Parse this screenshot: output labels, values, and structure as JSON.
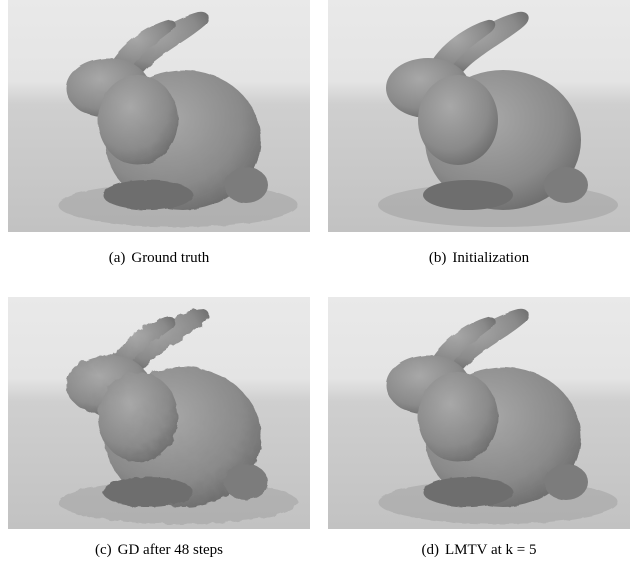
{
  "figure": {
    "panels": [
      {
        "label": "(a)",
        "caption": "Ground truth"
      },
      {
        "label": "(b)",
        "caption": "Initialization"
      },
      {
        "label": "(c)",
        "caption": "GD after 48 steps"
      },
      {
        "label": "(d)",
        "caption": "LMTV at k = 5"
      }
    ]
  }
}
